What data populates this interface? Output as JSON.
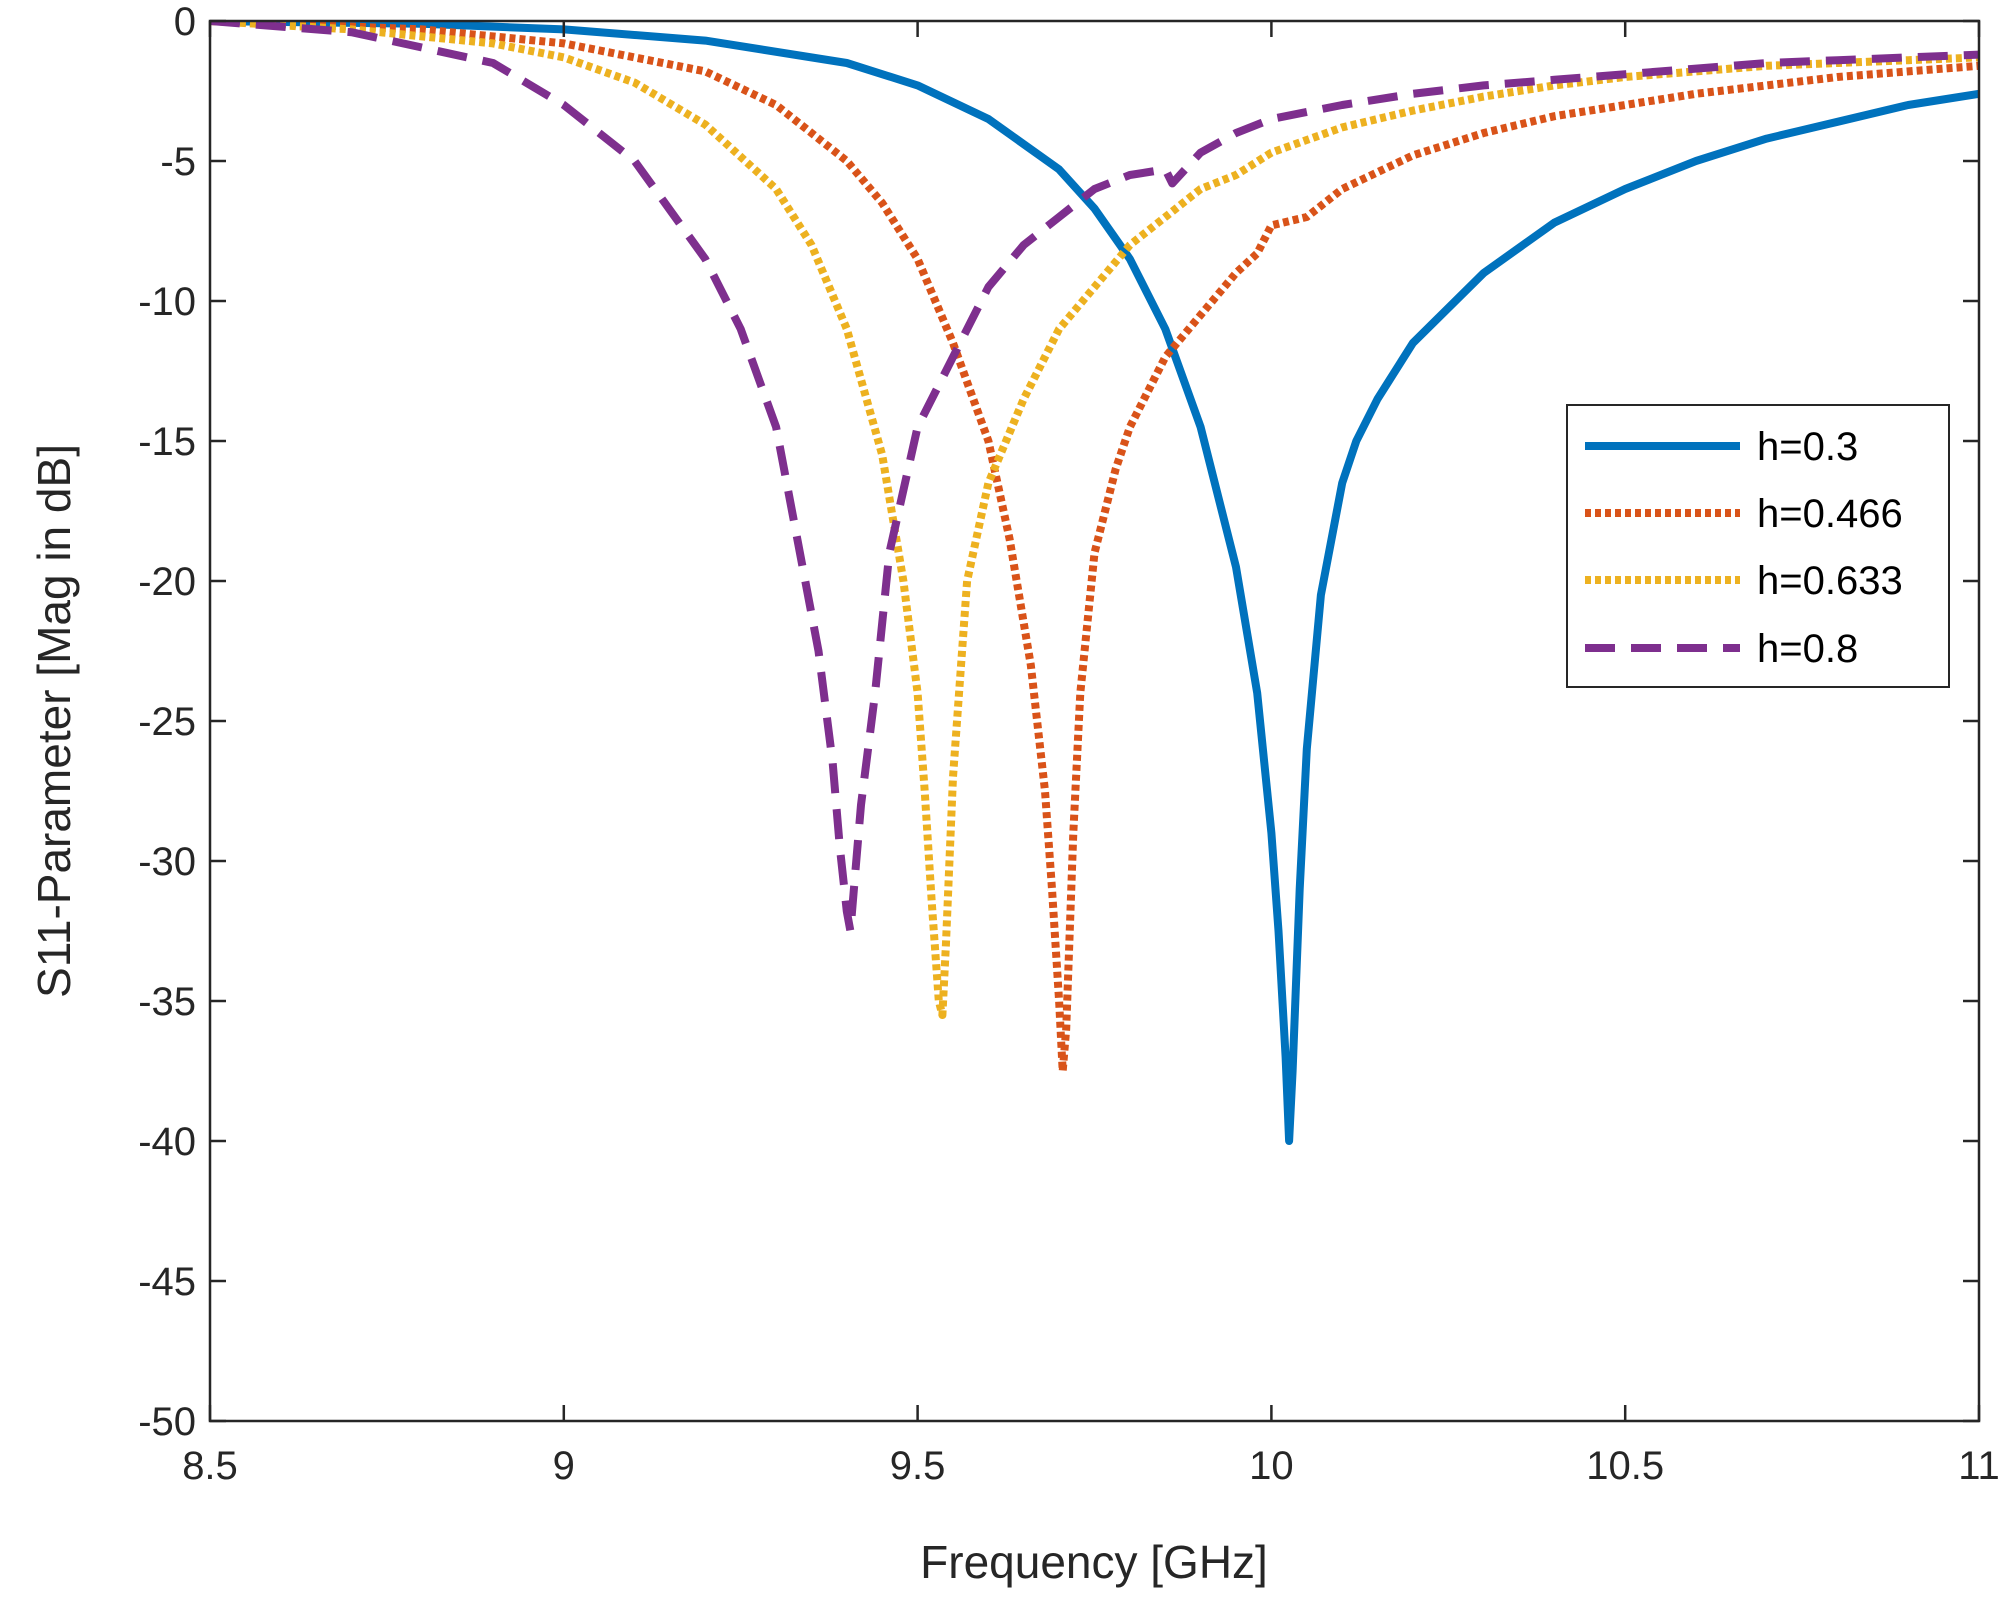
{
  "chart_data": {
    "type": "line",
    "xlabel": "Frequency [GHz]",
    "ylabel": "S11-Parameter [Mag in dB]",
    "xlim": [
      8.5,
      11
    ],
    "ylim": [
      -50,
      0
    ],
    "xticks": [
      8.5,
      9,
      9.5,
      10,
      10.5,
      11
    ],
    "xtick_labels": [
      "8.5",
      "9",
      "9.5",
      "10",
      "10.5",
      "11"
    ],
    "yticks": [
      0,
      -5,
      -10,
      -15,
      -20,
      -25,
      -30,
      -35,
      -40,
      -45,
      -50
    ],
    "ytick_labels": [
      "0",
      "-5",
      "-10",
      "-15",
      "-20",
      "-25",
      "-30",
      "-35",
      "-40",
      "-45",
      "-50"
    ],
    "grid": false,
    "legend_position": "right",
    "series": [
      {
        "name": "h=0.3",
        "color": "#0072BD",
        "style": "solid",
        "x": [
          8.5,
          8.8,
          9.0,
          9.2,
          9.4,
          9.5,
          9.6,
          9.7,
          9.75,
          9.8,
          9.85,
          9.9,
          9.95,
          9.98,
          10.0,
          10.01,
          10.02,
          10.025,
          10.03,
          10.04,
          10.05,
          10.07,
          10.1,
          10.12,
          10.15,
          10.2,
          10.3,
          10.4,
          10.5,
          10.6,
          10.7,
          10.8,
          10.9,
          11.0
        ],
        "y": [
          0,
          -0.1,
          -0.3,
          -0.7,
          -1.5,
          -2.3,
          -3.5,
          -5.3,
          -6.7,
          -8.5,
          -11.0,
          -14.5,
          -19.5,
          -24.0,
          -29.0,
          -32.5,
          -37.0,
          -40.0,
          -37.5,
          -31.0,
          -26.0,
          -20.5,
          -16.5,
          -15.0,
          -13.5,
          -11.5,
          -9.0,
          -7.2,
          -6.0,
          -5.0,
          -4.2,
          -3.6,
          -3.0,
          -2.6
        ]
      },
      {
        "name": "h=0.466",
        "color": "#D95319",
        "style": "dotted",
        "x": [
          8.5,
          8.8,
          9.0,
          9.2,
          9.3,
          9.4,
          9.45,
          9.5,
          9.55,
          9.6,
          9.63,
          9.66,
          9.68,
          9.69,
          9.7,
          9.705,
          9.71,
          9.72,
          9.73,
          9.75,
          9.78,
          9.8,
          9.85,
          9.9,
          9.95,
          9.98,
          10.0,
          10.05,
          10.1,
          10.2,
          10.3,
          10.4,
          10.5,
          10.6,
          10.7,
          10.8,
          10.9,
          11.0
        ],
        "y": [
          0,
          -0.3,
          -0.8,
          -1.8,
          -3.0,
          -5.0,
          -6.5,
          -8.5,
          -11.5,
          -15.0,
          -18.5,
          -23.0,
          -27.5,
          -31.0,
          -35.0,
          -37.5,
          -36.0,
          -29.0,
          -24.0,
          -19.0,
          -16.0,
          -14.5,
          -12.0,
          -10.5,
          -9.0,
          -8.3,
          -7.3,
          -7.0,
          -6.0,
          -4.8,
          -4.0,
          -3.4,
          -3.0,
          -2.6,
          -2.3,
          -2.0,
          -1.8,
          -1.6
        ]
      },
      {
        "name": "h=0.633",
        "color": "#EDB120",
        "style": "dotted",
        "x": [
          8.5,
          8.7,
          8.9,
          9.0,
          9.1,
          9.2,
          9.3,
          9.35,
          9.4,
          9.45,
          9.48,
          9.5,
          9.51,
          9.52,
          9.53,
          9.535,
          9.54,
          9.55,
          9.57,
          9.6,
          9.65,
          9.7,
          9.75,
          9.8,
          9.85,
          9.9,
          9.95,
          10.0,
          10.1,
          10.2,
          10.3,
          10.4,
          10.5,
          10.6,
          10.7,
          10.8,
          10.9,
          11.0
        ],
        "y": [
          0,
          -0.3,
          -0.8,
          -1.3,
          -2.2,
          -3.7,
          -6.0,
          -8.0,
          -11.0,
          -15.5,
          -20.0,
          -24.0,
          -27.5,
          -31.5,
          -35.0,
          -35.5,
          -33.0,
          -27.0,
          -20.0,
          -16.5,
          -13.5,
          -11.0,
          -9.5,
          -8.0,
          -7.0,
          -6.0,
          -5.5,
          -4.7,
          -3.8,
          -3.2,
          -2.7,
          -2.3,
          -2.0,
          -1.8,
          -1.6,
          -1.5,
          -1.4,
          -1.3
        ]
      },
      {
        "name": "h=0.8",
        "color": "#7E2F8E",
        "style": "dashed",
        "x": [
          8.5,
          8.7,
          8.9,
          9.0,
          9.1,
          9.2,
          9.25,
          9.3,
          9.33,
          9.36,
          9.38,
          9.39,
          9.4,
          9.405,
          9.41,
          9.42,
          9.44,
          9.46,
          9.5,
          9.55,
          9.6,
          9.65,
          9.7,
          9.75,
          9.8,
          9.85,
          9.86,
          9.9,
          9.95,
          10.0,
          10.1,
          10.2,
          10.3,
          10.4,
          10.5,
          10.6,
          10.7,
          10.8,
          10.9,
          11.0
        ],
        "y": [
          0,
          -0.4,
          -1.5,
          -3.0,
          -5.0,
          -8.5,
          -11.0,
          -14.5,
          -18.5,
          -22.5,
          -26.5,
          -29.5,
          -31.8,
          -32.5,
          -31.0,
          -28.0,
          -24.0,
          -19.0,
          -14.5,
          -12.0,
          -9.5,
          -8.0,
          -7.0,
          -6.0,
          -5.5,
          -5.3,
          -5.8,
          -4.7,
          -4.0,
          -3.5,
          -3.0,
          -2.6,
          -2.3,
          -2.1,
          -1.9,
          -1.7,
          -1.5,
          -1.4,
          -1.3,
          -1.2
        ]
      }
    ]
  }
}
